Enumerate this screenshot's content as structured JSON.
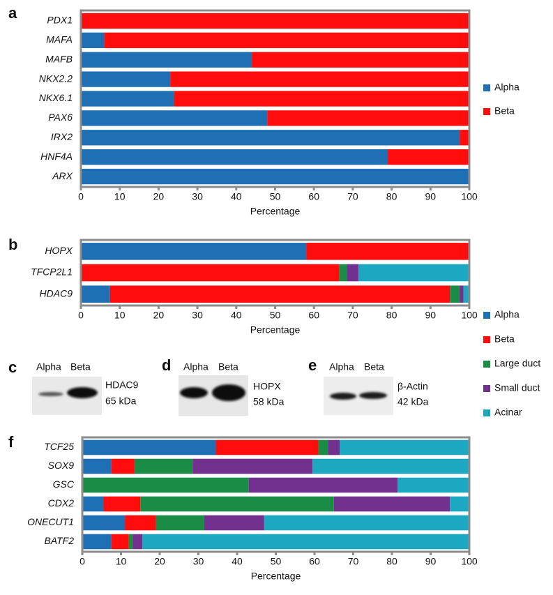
{
  "chart_data": [
    {
      "type": "stacked-bar-horizontal",
      "label": "a",
      "categories": [
        "PDX1",
        "MAFA",
        "MAFB",
        "NKX2.2",
        "NKX6.1",
        "PAX6",
        "IRX2",
        "HNF4A",
        "ARX"
      ],
      "series": [
        {
          "name": "Alpha",
          "color": "#1f6fb4",
          "values": [
            0,
            6,
            44,
            23,
            24,
            48,
            97.5,
            79,
            100
          ]
        },
        {
          "name": "Beta",
          "color": "#ff0d0d",
          "values": [
            100,
            94,
            56,
            77,
            76,
            52,
            2.5,
            21,
            0
          ]
        }
      ],
      "xlim": [
        0,
        100
      ],
      "xticks": [
        0,
        10,
        20,
        30,
        40,
        50,
        60,
        70,
        80,
        90,
        100
      ],
      "x_label": "Percentage",
      "legend": "right"
    },
    {
      "type": "stacked-bar-horizontal",
      "label": "b",
      "categories": [
        "HOPX",
        "TFCP2L1",
        "HDAC9"
      ],
      "series": [
        {
          "name": "Alpha",
          "color": "#1f6fb4",
          "values": [
            58,
            0,
            7.5
          ]
        },
        {
          "name": "Beta",
          "color": "#ff0d0d",
          "values": [
            42,
            66.5,
            87.5
          ]
        },
        {
          "name": "Large duct",
          "color": "#1a8c45",
          "values": [
            0,
            2,
            2.5
          ]
        },
        {
          "name": "Small duct",
          "color": "#72308f",
          "values": [
            0,
            3,
            1
          ]
        },
        {
          "name": "Acinar",
          "color": "#1ba8c0",
          "values": [
            0,
            28.5,
            1.5
          ]
        }
      ],
      "xlim": [
        0,
        100
      ],
      "xticks": [
        0,
        10,
        20,
        30,
        40,
        50,
        60,
        70,
        80,
        90,
        100
      ],
      "x_label": "Percentage",
      "legend": "right"
    },
    {
      "type": "stacked-bar-horizontal",
      "label": "f",
      "categories": [
        "TCF25",
        "SOX9",
        "GSC",
        "CDX2",
        "ONECUT1",
        "BATF2"
      ],
      "series": [
        {
          "name": "Alpha",
          "color": "#1f6fb4",
          "values": [
            34.5,
            7.5,
            0,
            5.5,
            11,
            7.5
          ]
        },
        {
          "name": "Beta",
          "color": "#ff0d0d",
          "values": [
            26.5,
            6,
            0,
            9.5,
            8,
            4.5
          ]
        },
        {
          "name": "Large duct",
          "color": "#1a8c45",
          "values": [
            2.5,
            15,
            43,
            50,
            12.5,
            1
          ]
        },
        {
          "name": "Small duct",
          "color": "#72308f",
          "values": [
            3,
            31,
            38.5,
            30,
            15.5,
            2.5
          ]
        },
        {
          "name": "Acinar",
          "color": "#1ba8c0",
          "values": [
            33.5,
            40.5,
            18.5,
            5,
            53,
            84.5
          ]
        }
      ],
      "xlim": [
        0,
        100
      ],
      "xticks": [
        0,
        10,
        20,
        30,
        40,
        50,
        60,
        70,
        80,
        90,
        100
      ],
      "x_label": "Percentage"
    }
  ],
  "blots": [
    {
      "label": "c",
      "lanes": [
        "Alpha",
        "Beta"
      ],
      "protein": "HDAC9",
      "size": "65 kDa"
    },
    {
      "label": "d",
      "lanes": [
        "Alpha",
        "Beta"
      ],
      "protein": "HOPX",
      "size": "58 kDa"
    },
    {
      "label": "e",
      "lanes": [
        "Alpha",
        "Beta"
      ],
      "protein": "β-Actin",
      "size": "42 kDa"
    }
  ]
}
